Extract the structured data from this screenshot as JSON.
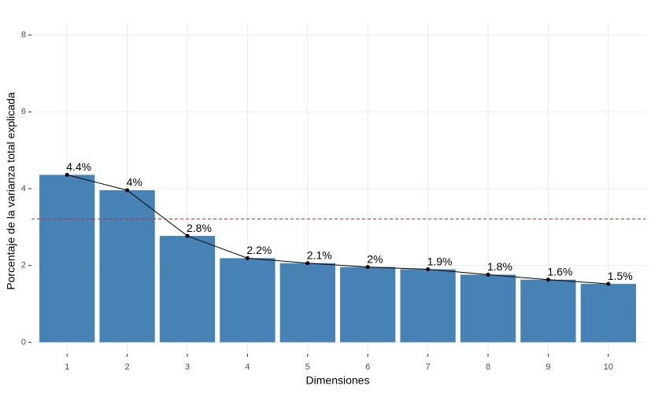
{
  "chart_data": {
    "type": "bar",
    "x_label": "Dimensiones",
    "y_label": "Porcentaje de la varianza total explicada",
    "categories": [
      "1",
      "2",
      "3",
      "4",
      "5",
      "6",
      "7",
      "8",
      "9",
      "10"
    ],
    "values": [
      4.36,
      3.96,
      2.77,
      2.19,
      2.06,
      1.96,
      1.9,
      1.76,
      1.63,
      1.52
    ],
    "value_labels": [
      "4.4%",
      "4%",
      "2.8%",
      "2.2%",
      "2.1%",
      "2%",
      "1.9%",
      "1.8%",
      "1.6%",
      "1.5%"
    ],
    "color": "#4682b4",
    "line_color": "#000000",
    "reference_line": 3.21,
    "reference_color": "#cc2222",
    "ylim": [
      -0.3,
      8.3
    ],
    "yticks": [
      0,
      2,
      4,
      6,
      8
    ],
    "grid": true
  }
}
